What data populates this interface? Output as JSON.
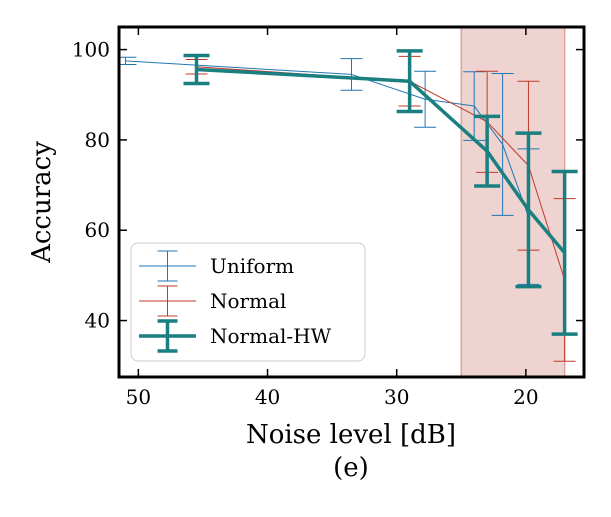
{
  "chart_data": {
    "type": "line",
    "title": "",
    "caption": "(e)",
    "xlabel": "Noise level [dB]",
    "ylabel": "Accuracy",
    "xlim": [
      51.5,
      15.5
    ],
    "ylim": [
      27.5,
      105
    ],
    "x_inverted": true,
    "xticks": [
      50,
      40,
      30,
      20
    ],
    "yticks": [
      40,
      60,
      80,
      100
    ],
    "grid": false,
    "legend_position": "lower-left",
    "highlight_region": {
      "x_from": 25,
      "x_to": 17,
      "color": "#e8c4c0"
    },
    "series": [
      {
        "name": "Uniform",
        "color": "#1f77b4",
        "width": 1,
        "points": [
          {
            "x": 51,
            "y": 97.5,
            "err": 0.8
          },
          {
            "x": 33.5,
            "y": 94.5,
            "err": 3.5
          },
          {
            "x": 27.8,
            "y": 89,
            "err": 6.2
          },
          {
            "x": 24,
            "y": 87.5,
            "err": 7.6
          },
          {
            "x": 21.8,
            "y": 79,
            "err": 15.7
          },
          {
            "x": 19.8,
            "y": 63,
            "err": 15
          }
        ]
      },
      {
        "name": "Normal",
        "color": "#c0392b",
        "width": 1,
        "points": [
          {
            "x": 45.5,
            "y": 96.2,
            "err": 1.6
          },
          {
            "x": 29,
            "y": 93,
            "err": 5.5
          },
          {
            "x": 23,
            "y": 84,
            "err": 11.2
          },
          {
            "x": 19.8,
            "y": 74.3,
            "err": 18.7
          },
          {
            "x": 17,
            "y": 49,
            "err": 18
          }
        ]
      },
      {
        "name": "Normal-HW",
        "color": "#1a7f80",
        "width": 3.5,
        "points": [
          {
            "x": 45.5,
            "y": 95.6,
            "err": 3.1
          },
          {
            "x": 29,
            "y": 93,
            "err": 6.7
          },
          {
            "x": 23,
            "y": 77.5,
            "err": 7.7
          },
          {
            "x": 19.8,
            "y": 64.5,
            "err": 17
          },
          {
            "x": 17,
            "y": 55,
            "err": 18
          }
        ]
      }
    ]
  }
}
